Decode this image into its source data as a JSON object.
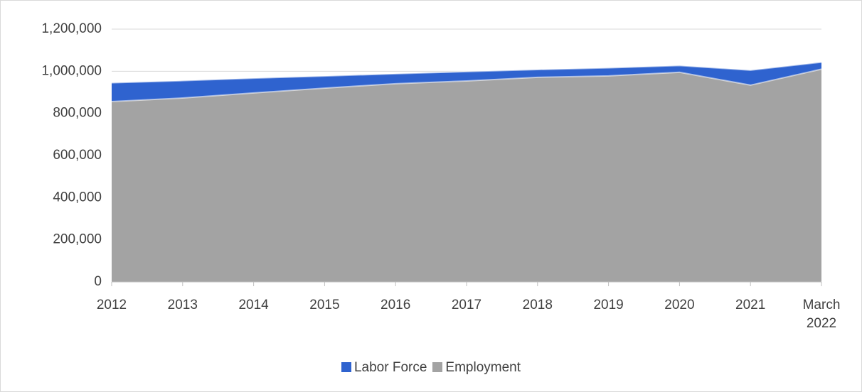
{
  "chart_data": {
    "type": "area",
    "categories": [
      "2012",
      "2013",
      "2014",
      "2015",
      "2016",
      "2017",
      "2018",
      "2019",
      "2020",
      "2021",
      "March 2022"
    ],
    "series": [
      {
        "name": "Labor Force",
        "color": "#2f63cf",
        "values": [
          945000,
          955000,
          967000,
          977000,
          988000,
          998000,
          1008000,
          1016000,
          1027000,
          1005000,
          1043000
        ]
      },
      {
        "name": "Employment",
        "color": "#a3a3a3",
        "values": [
          856000,
          873000,
          897000,
          920000,
          941000,
          954000,
          971000,
          978000,
          995000,
          934000,
          1010000
        ]
      }
    ],
    "ylim": [
      0,
      1200000
    ],
    "yticks": [
      0,
      {
        "value": 200000,
        "label": "200,000"
      },
      {
        "value": 400000,
        "label": "400,000"
      },
      {
        "value": 600000,
        "label": "600,000"
      },
      {
        "value": 800000,
        "label": "800,000"
      },
      {
        "value": 1000000,
        "label": "1,000,000"
      },
      {
        "value": 1200000,
        "label": "1,200,000"
      }
    ],
    "grid": true,
    "legend": "bottom"
  }
}
